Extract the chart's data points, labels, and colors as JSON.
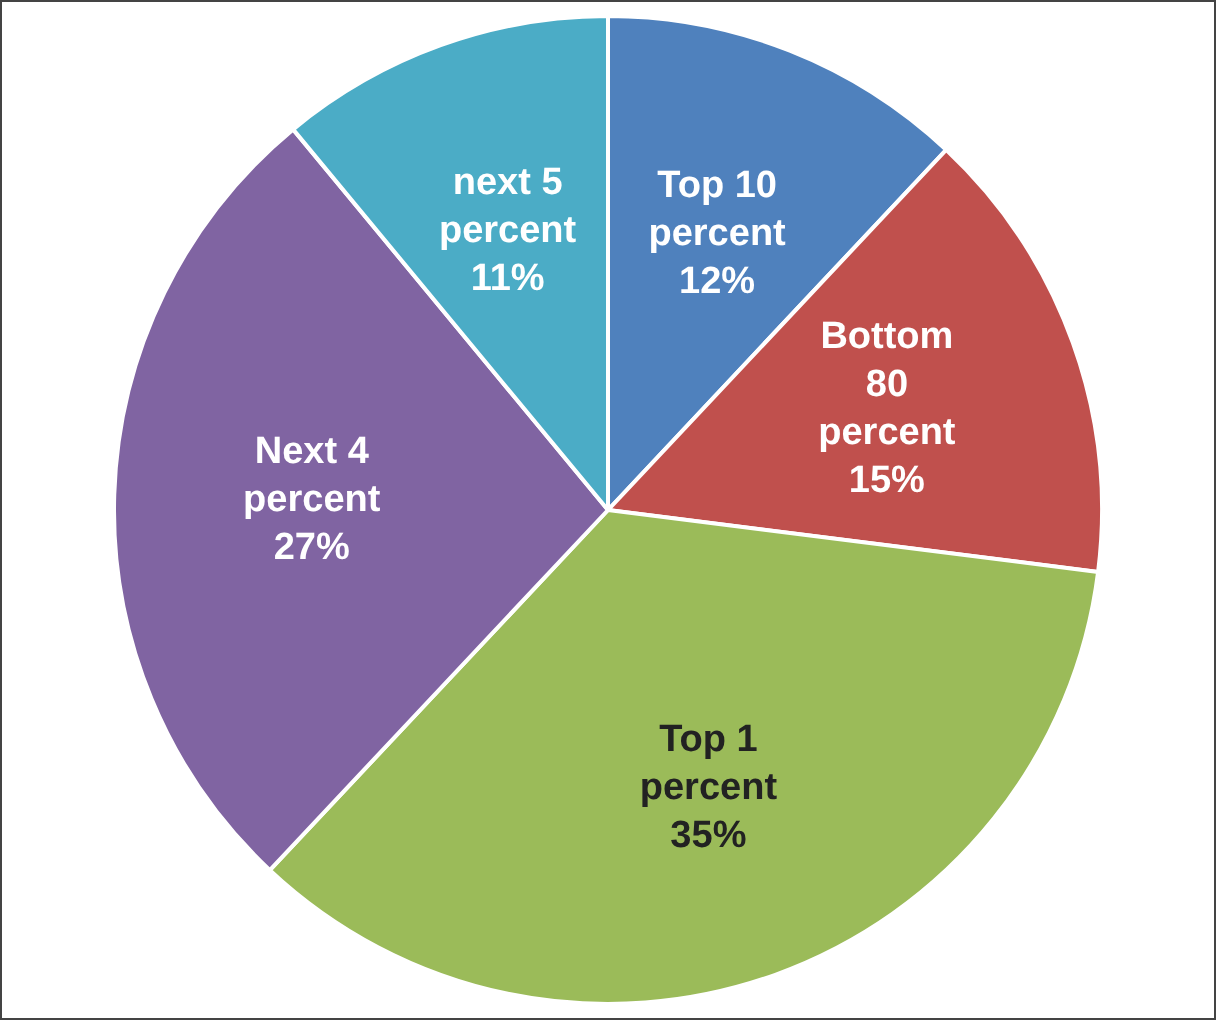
{
  "chart_data": {
    "type": "pie",
    "categories": [
      "Top 10 percent",
      "Bottom 80 percent",
      "Top 1 percent",
      "Next 4 percent",
      "next 5 percent"
    ],
    "values": [
      12,
      15,
      35,
      27,
      11
    ],
    "value_labels": [
      "12%",
      "15%",
      "35%",
      "27%",
      "11%"
    ],
    "colors": [
      "#4f81bd",
      "#c0504d",
      "#9bbb59",
      "#8064a2",
      "#4bacc6"
    ],
    "legend": false
  }
}
